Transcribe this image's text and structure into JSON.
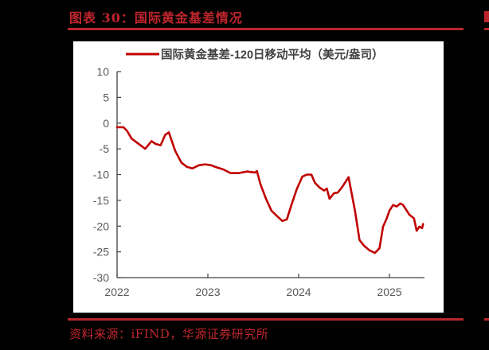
{
  "figure": {
    "title": "图表 30：国际黄金基差情况",
    "source": "资料来源：iFIND，华源证券研究所",
    "accent_color": "#c0262d",
    "line_color": "#c00000"
  },
  "chart_data": {
    "type": "line",
    "title": "",
    "legend": [
      "国际黄金基差-120日移动平均（美元/盎司）"
    ],
    "legend_position": "top",
    "xlabel": "",
    "ylabel": "",
    "x_ticks": [
      "2022",
      "2023",
      "2024",
      "2025"
    ],
    "y_ticks": [
      "10",
      "5",
      "0",
      "-5",
      "-10",
      "-15",
      "-20",
      "-25",
      "-30"
    ],
    "ylim": [
      -30,
      10
    ],
    "xlim": [
      2022.0,
      2025.4
    ],
    "grid": false,
    "series": [
      {
        "name": "国际黄金基差-120日移动平均（美元/盎司）",
        "x": [
          2022.0,
          2022.07,
          2022.11,
          2022.16,
          2022.25,
          2022.31,
          2022.38,
          2022.42,
          2022.48,
          2022.53,
          2022.57,
          2022.64,
          2022.71,
          2022.77,
          2022.83,
          2022.9,
          2022.97,
          2023.04,
          2023.08,
          2023.17,
          2023.25,
          2023.34,
          2023.43,
          2023.52,
          2023.54,
          2023.58,
          2023.64,
          2023.7,
          2023.77,
          2023.82,
          2023.87,
          2023.92,
          2023.98,
          2024.04,
          2024.09,
          2024.14,
          2024.18,
          2024.23,
          2024.28,
          2024.31,
          2024.34,
          2024.39,
          2024.43,
          2024.48,
          2024.52,
          2024.55,
          2024.57,
          2024.62,
          2024.67,
          2024.72,
          2024.78,
          2024.84,
          2024.89,
          2024.93,
          2024.97,
          2025.0,
          2025.04,
          2025.08,
          2025.12,
          2025.15,
          2025.19,
          2025.22,
          2025.27,
          2025.3,
          2025.33,
          2025.36,
          2025.37
        ],
        "values": [
          -0.8,
          -0.8,
          -1.5,
          -3.0,
          -4.2,
          -5.0,
          -3.5,
          -4.0,
          -4.3,
          -2.3,
          -1.8,
          -5.4,
          -7.7,
          -8.5,
          -8.8,
          -8.2,
          -8.0,
          -8.2,
          -8.5,
          -9.0,
          -9.7,
          -9.7,
          -9.4,
          -9.6,
          -9.3,
          -11.9,
          -14.7,
          -17.0,
          -18.2,
          -19.0,
          -18.7,
          -15.9,
          -12.8,
          -10.4,
          -10.0,
          -10.0,
          -11.6,
          -12.5,
          -13.1,
          -12.7,
          -14.7,
          -13.6,
          -13.5,
          -12.4,
          -11.3,
          -10.5,
          -12.4,
          -17.0,
          -22.7,
          -23.8,
          -24.7,
          -25.2,
          -24.3,
          -20.1,
          -18.5,
          -17.0,
          -15.9,
          -16.2,
          -15.6,
          -15.9,
          -17.0,
          -17.8,
          -18.5,
          -20.9,
          -20.1,
          -20.4,
          -19.6
        ]
      }
    ]
  }
}
